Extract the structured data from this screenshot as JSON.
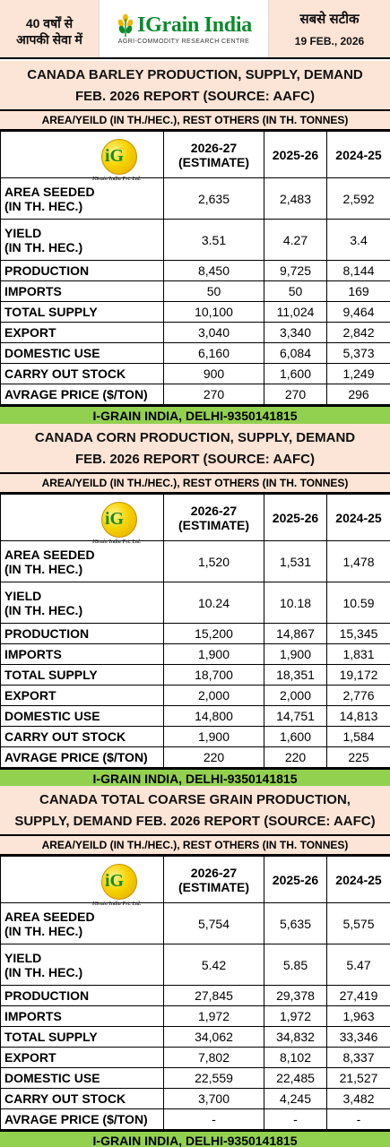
{
  "header": {
    "left_line1": "40 वर्षों से",
    "left_line2": "आपकी सेवा में",
    "brand": "IGrain India",
    "tagline": "AGRI-COMMODITY RESEARCH CENTRE",
    "right_line1": "सबसे सटीक",
    "date": "19 FEB., 2026"
  },
  "common": {
    "units_note": "AREA/YEILD (IN TH./HEC.), REST OTHERS (IN TH. TONNES)",
    "col_headers": [
      "2026-27 (ESTIMATE)",
      "2025-26",
      "2024-25"
    ],
    "col1_line1": "2026-27",
    "col1_line2": "(ESTIMATE)",
    "col2": "2025-26",
    "col3": "2024-25",
    "badge_text": "iG",
    "badge_name": "IGrain India Pvt. Ltd.",
    "footer": "I-GRAIN INDIA, DELHI-9350141815"
  },
  "sections": [
    {
      "title_line1": "CANADA BARLEY PRODUCTION, SUPPLY, DEMAND",
      "title_line2": "FEB. 2026 REPORT (SOURCE: AAFC)",
      "rows": [
        {
          "label": "AREA SEEDED",
          "label2": "(IN TH. HEC.)",
          "v": [
            "2,635",
            "2,483",
            "2,592"
          ]
        },
        {
          "label": "YIELD",
          "label2": "(IN TH. HEC.)",
          "v": [
            "3.51",
            "4.27",
            "3.4"
          ]
        },
        {
          "label": "PRODUCTION",
          "v": [
            "8,450",
            "9,725",
            "8,144"
          ]
        },
        {
          "label": "IMPORTS",
          "v": [
            "50",
            "50",
            "169"
          ]
        },
        {
          "label": "TOTAL SUPPLY",
          "v": [
            "10,100",
            "11,024",
            "9,464"
          ]
        },
        {
          "label": "EXPORT",
          "v": [
            "3,040",
            "3,340",
            "2,842"
          ]
        },
        {
          "label": "DOMESTIC USE",
          "v": [
            "6,160",
            "6,084",
            "5,373"
          ]
        },
        {
          "label": "CARRY OUT STOCK",
          "v": [
            "900",
            "1,600",
            "1,249"
          ]
        },
        {
          "label": "AVRAGE PRICE ($/TON)",
          "v": [
            "270",
            "270",
            "296"
          ]
        }
      ]
    },
    {
      "title_line1": "CANADA CORN PRODUCTION, SUPPLY, DEMAND",
      "title_line2": "FEB. 2026 REPORT (SOURCE: AAFC)",
      "rows": [
        {
          "label": "AREA SEEDED",
          "label2": "(IN TH. HEC.)",
          "v": [
            "1,520",
            "1,531",
            "1,478"
          ]
        },
        {
          "label": "YIELD",
          "label2": "(IN TH. HEC.)",
          "v": [
            "10.24",
            "10.18",
            "10.59"
          ]
        },
        {
          "label": "PRODUCTION",
          "v": [
            "15,200",
            "14,867",
            "15,345"
          ]
        },
        {
          "label": "IMPORTS",
          "v": [
            "1,900",
            "1,900",
            "1,831"
          ]
        },
        {
          "label": "TOTAL SUPPLY",
          "v": [
            "18,700",
            "18,351",
            "19,172"
          ]
        },
        {
          "label": "EXPORT",
          "v": [
            "2,000",
            "2,000",
            "2,776"
          ]
        },
        {
          "label": "DOMESTIC USE",
          "v": [
            "14,800",
            "14,751",
            "14,813"
          ]
        },
        {
          "label": "CARRY OUT STOCK",
          "v": [
            "1,900",
            "1,600",
            "1,584"
          ]
        },
        {
          "label": "AVRAGE PRICE ($/TON)",
          "v": [
            "220",
            "220",
            "225"
          ]
        }
      ]
    },
    {
      "title_line1": "CANADA TOTAL COARSE GRAIN  PRODUCTION,",
      "title_line2": "SUPPLY, DEMAND FEB. 2026 REPORT (SOURCE: AAFC)",
      "rows": [
        {
          "label": "AREA SEEDED",
          "label2": "(IN TH. HEC.)",
          "v": [
            "5,754",
            "5,635",
            "5,575"
          ]
        },
        {
          "label": "YIELD",
          "label2": "(IN TH. HEC.)",
          "v": [
            "5.42",
            "5.85",
            "5.47"
          ]
        },
        {
          "label": "PRODUCTION",
          "v": [
            "27,845",
            "29,378",
            "27,419"
          ]
        },
        {
          "label": "IMPORTS",
          "v": [
            "1,972",
            "1,972",
            "1,963"
          ]
        },
        {
          "label": "TOTAL SUPPLY",
          "v": [
            "34,062",
            "34,832",
            "33,346"
          ]
        },
        {
          "label": "EXPORT",
          "v": [
            "7,802",
            "8,102",
            "8,337"
          ]
        },
        {
          "label": "DOMESTIC USE",
          "v": [
            "22,559",
            "22,485",
            "21,527"
          ]
        },
        {
          "label": "CARRY OUT STOCK",
          "v": [
            "3,700",
            "4,245",
            "3,482"
          ]
        },
        {
          "label": "AVRAGE PRICE ($/TON)",
          "v": [
            "-",
            "-",
            "-"
          ]
        }
      ]
    }
  ],
  "colors": {
    "header_bg": "#fce4d6",
    "footer_bg": "#92d050",
    "brand_green": "#0b8a2c",
    "badge_yellow": "#f6d200"
  }
}
